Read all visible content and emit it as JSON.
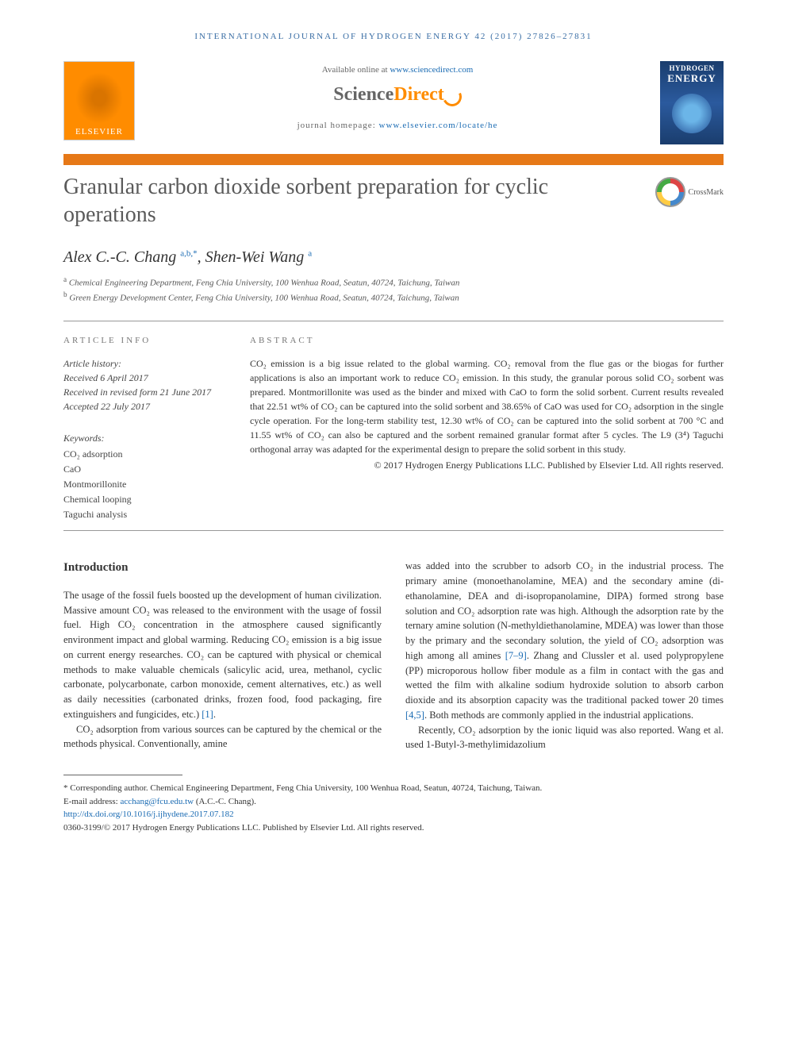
{
  "running_header": "INTERNATIONAL JOURNAL OF HYDROGEN ENERGY 42 (2017) 27826–27831",
  "available": {
    "prefix": "Available online at ",
    "link": "www.sciencedirect.com"
  },
  "sd_logo": {
    "science": "Science",
    "direct": "Direct"
  },
  "homepage": {
    "prefix": "journal homepage: ",
    "link": "www.elsevier.com/locate/he"
  },
  "elsevier": "ELSEVIER",
  "cover": {
    "line1": "HYDROGEN",
    "line2": "ENERGY"
  },
  "crossmark_label": "CrossMark",
  "title": "Granular carbon dioxide sorbent preparation for cyclic operations",
  "authors": [
    {
      "name": "Alex C.-C. Chang",
      "aff": "a,b,*"
    },
    {
      "name": "Shen-Wei Wang",
      "aff": "a"
    }
  ],
  "author_sep": ", ",
  "affiliations": [
    {
      "sup": "a",
      "text": "Chemical Engineering Department, Feng Chia University, 100 Wenhua Road, Seatun, 40724, Taichung, Taiwan"
    },
    {
      "sup": "b",
      "text": "Green Energy Development Center, Feng Chia University, 100 Wenhua Road, Seatun, 40724, Taichung, Taiwan"
    }
  ],
  "info_header": "ARTICLE INFO",
  "abstract_header": "ABSTRACT",
  "history": {
    "label": "Article history:",
    "received": "Received 6 April 2017",
    "revised": "Received in revised form 21 June 2017",
    "accepted": "Accepted 22 July 2017"
  },
  "keywords": {
    "label": "Keywords:",
    "items": [
      "CO₂ adsorption",
      "CaO",
      "Montmorillonite",
      "Chemical looping",
      "Taguchi analysis"
    ]
  },
  "abstract": "CO₂ emission is a big issue related to the global warming. CO₂ removal from the flue gas or the biogas for further applications is also an important work to reduce CO₂ emission. In this study, the granular porous solid CO₂ sorbent was prepared. Montmorillonite was used as the binder and mixed with CaO to form the solid sorbent. Current results revealed that 22.51 wt% of CO₂ can be captured into the solid sorbent and 38.65% of CaO was used for CO₂ adsorption in the single cycle operation. For the long-term stability test, 12.30 wt% of CO₂ can be captured into the solid sorbent at 700 °C and 11.55 wt% of CO₂ can also be captured and the sorbent remained granular format after 5 cycles. The L9 (3⁴) Taguchi orthogonal array was adapted for the experimental design to prepare the solid sorbent in this study.",
  "copyright": "© 2017 Hydrogen Energy Publications LLC. Published by Elsevier Ltd. All rights reserved.",
  "section_intro": "Introduction",
  "intro_p1_a": "The usage of the fossil fuels boosted up the development of human civilization. Massive amount CO₂ was released to the environment with the usage of fossil fuel. High CO₂ concentration in the atmosphere caused significantly environment impact and global warming. Reducing CO₂ emission is a big issue on current energy researches. CO₂ can be captured with physical or chemical methods to make valuable chemicals (salicylic acid, urea, methanol, cyclic carbonate, polycarbonate, carbon monoxide, cement alternatives, etc.) as well as daily necessities (carbonated drinks, frozen food, food packaging, fire extinguishers and fungicides, etc.) ",
  "ref1": "[1]",
  "intro_p1_b": ".",
  "intro_p2": "CO₂ adsorption from various sources can be captured by the chemical or the methods physical. Conventionally, amine",
  "col2_p1_a": "was added into the scrubber to adsorb CO₂ in the industrial process. The primary amine (monoethanolamine, MEA) and the secondary amine (di-ethanolamine, DEA and di-isopropanolamine, DIPA) formed strong base solution and CO₂ adsorption rate was high. Although the adsorption rate by the ternary amine solution (N-methyldiethanolamine, MDEA) was lower than those by the primary and the secondary solution, the yield of CO₂ adsorption was high among all amines ",
  "ref79": "[7–9]",
  "col2_p1_b": ". Zhang and Clussler et al. used polypropylene (PP) microporous hollow fiber module as a film in contact with the gas and wetted the film with alkaline sodium hydroxide solution to absorb carbon dioxide and its absorption capacity was the traditional packed tower 20 times ",
  "ref45": "[4,5]",
  "col2_p1_c": ". Both methods are commonly applied in the industrial applications.",
  "col2_p2": "Recently, CO₂ adsorption by the ionic liquid was also reported. Wang et al. used 1-Butyl-3-methylimidazolium",
  "footnote": {
    "corr": "* Corresponding author. Chemical Engineering Department, Feng Chia University, 100 Wenhua Road, Seatun, 40724, Taichung, Taiwan.",
    "email_label": "E-mail address: ",
    "email": "acchang@fcu.edu.tw",
    "email_suffix": " (A.C.-C. Chang).",
    "doi": "http://dx.doi.org/10.1016/j.ijhydene.2017.07.182",
    "issn": "0360-3199/© 2017 Hydrogen Energy Publications LLC. Published by Elsevier Ltd. All rights reserved."
  },
  "colors": {
    "accent_orange": "#e67817",
    "link_blue": "#1a6bb3",
    "header_blue": "#3a6ea5",
    "cover_blue": "#1a3d6d"
  }
}
